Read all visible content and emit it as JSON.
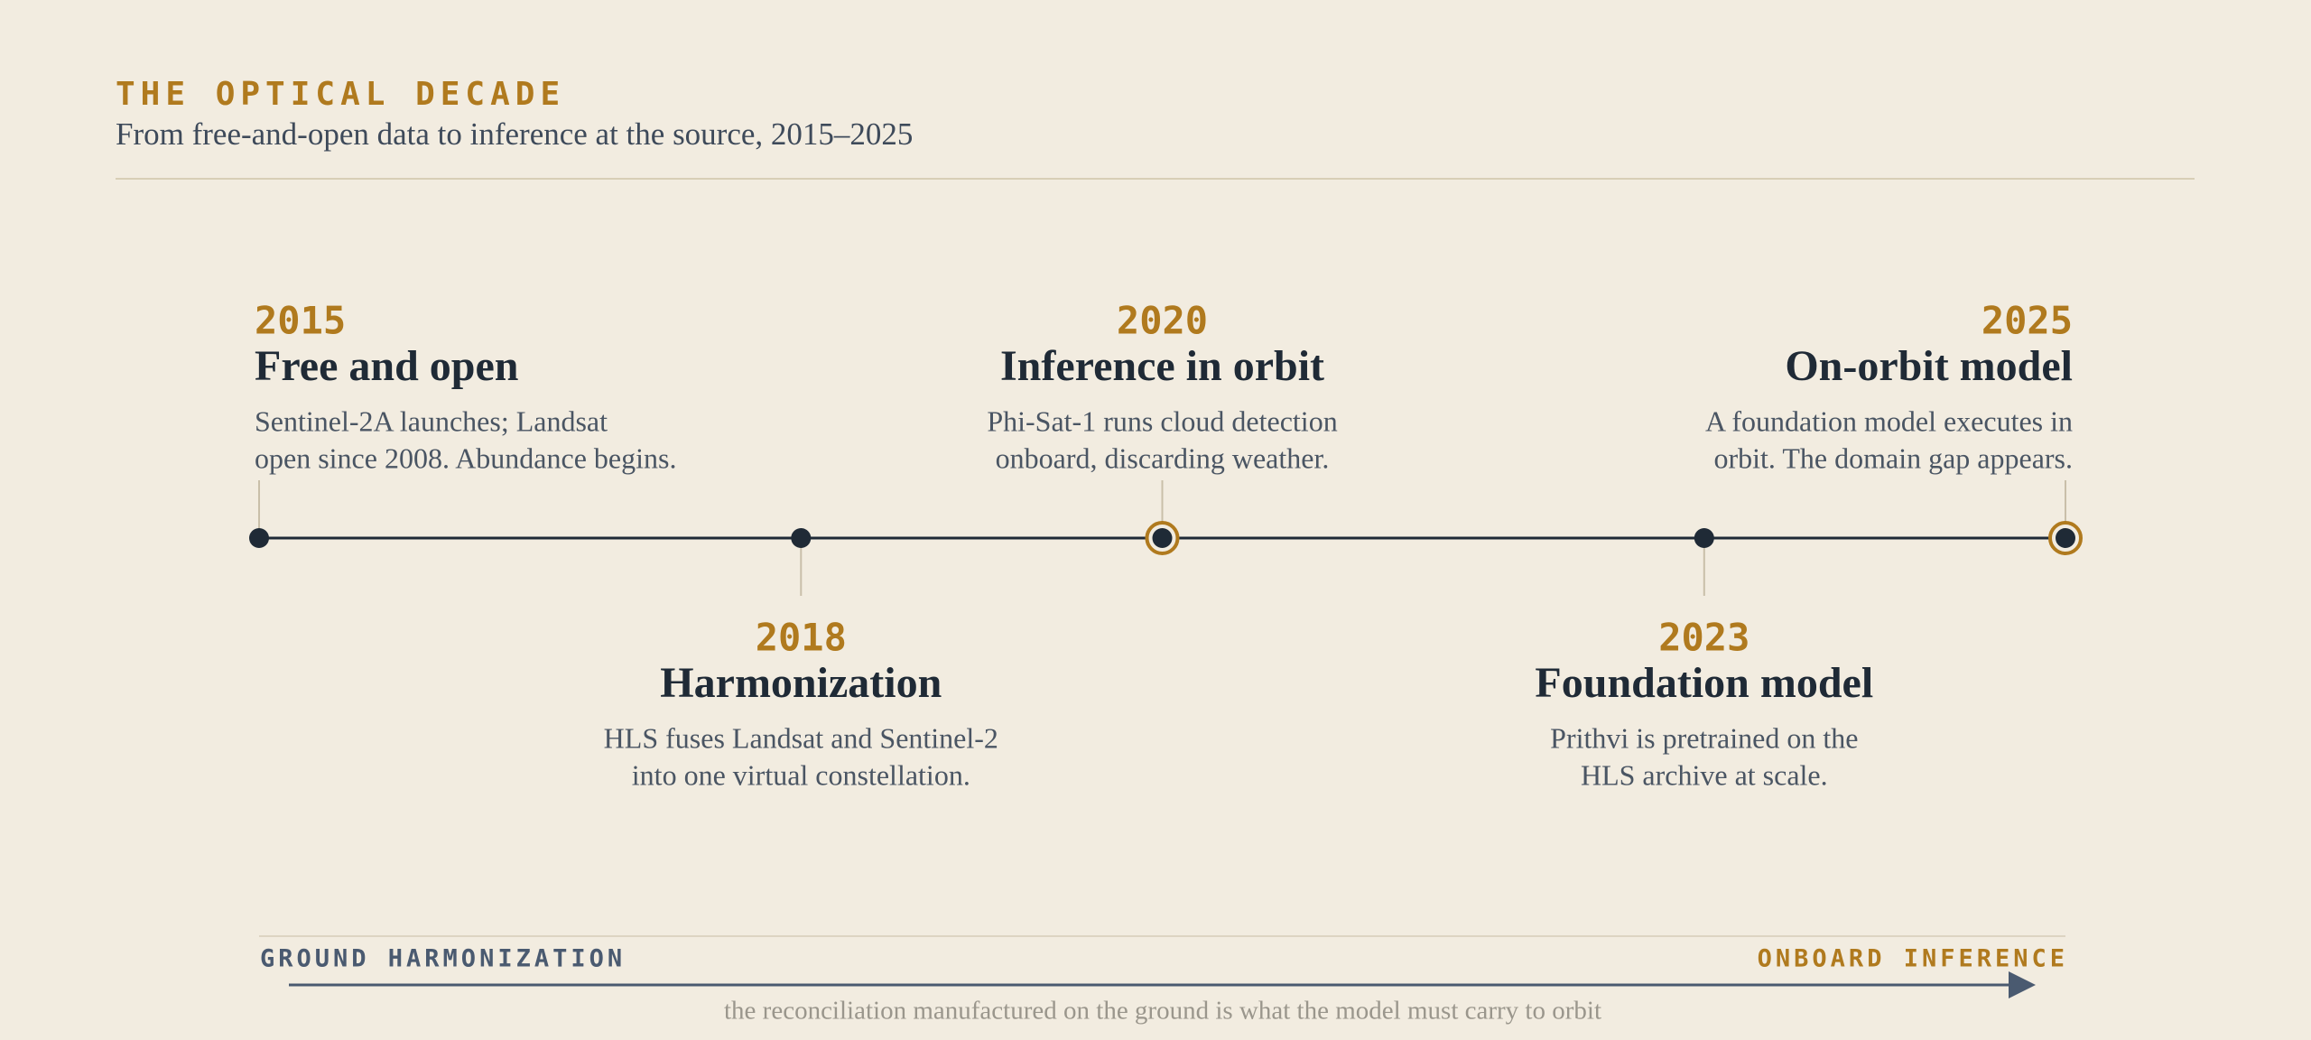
{
  "header": {
    "title": "THE OPTICAL DECADE",
    "subtitle": "From free-and-open data to inference at the source, 2015–2025"
  },
  "events": [
    {
      "year": 2015,
      "title": "Free and open",
      "description": [
        "Sentinel-2A launches; Landsat",
        "open since 2008. Abundance begins."
      ],
      "marker": "dot"
    },
    {
      "year": 2018,
      "title": "Harmonization",
      "description": [
        "HLS fuses Landsat and Sentinel-2",
        "into one virtual constellation."
      ],
      "marker": "dot"
    },
    {
      "year": 2020,
      "title": "Inference in orbit",
      "description": [
        "Phi-Sat-1 runs cloud detection",
        "onboard, discarding weather."
      ],
      "marker": "ring"
    },
    {
      "year": 2023,
      "title": "Foundation model",
      "description": [
        "Prithvi is pretrained on the",
        "HLS archive at scale."
      ],
      "marker": "dot"
    },
    {
      "year": 2025,
      "title": "On-orbit model",
      "description": [
        "A foundation model executes in",
        "orbit. The domain gap appears."
      ],
      "marker": "ring"
    }
  ],
  "footer": {
    "left_label": "GROUND HARMONIZATION",
    "right_label": "ONBOARD INFERENCE",
    "caption": "the reconciliation manufactured on the ground is what the model must carry to orbit"
  }
}
